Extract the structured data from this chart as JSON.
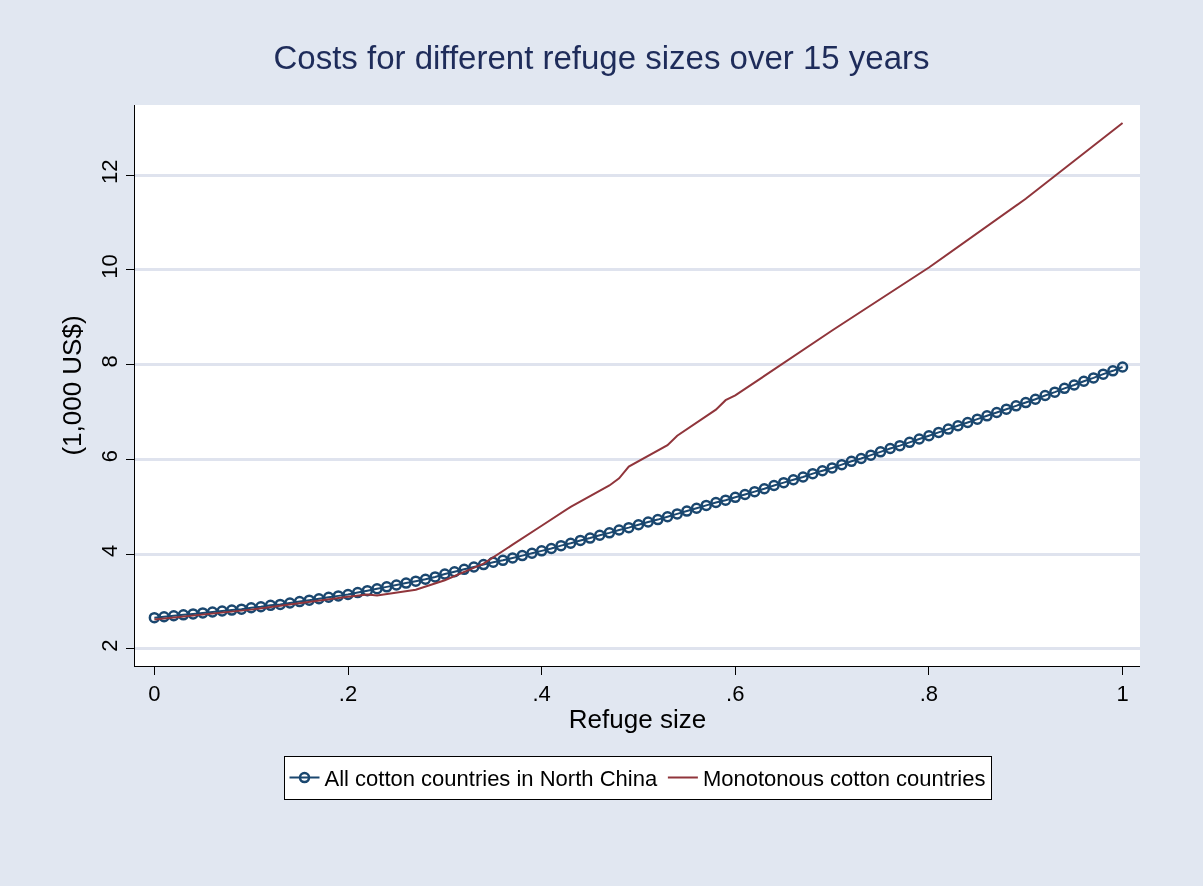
{
  "chart_data": {
    "type": "line",
    "title": "Costs for different refuge sizes over 15 years",
    "xlabel": "Refuge size",
    "ylabel": "(1,000 US$)",
    "xlim": [
      -0.02,
      1.018
    ],
    "ylim": [
      1.64,
      13.48
    ],
    "xticks": [
      0,
      {
        "value": 0.2,
        "label": ".2"
      },
      {
        "value": 0.4,
        "label": ".4"
      },
      {
        "value": 0.6,
        "label": ".6"
      },
      {
        "value": 0.8,
        "label": ".8"
      },
      1
    ],
    "yticks": [
      2,
      4,
      6,
      8,
      10,
      12
    ],
    "grid": "y",
    "legend": "bottom",
    "series": [
      {
        "name": "All cotton countries in North China",
        "color": "#1a476f",
        "marker": "circle",
        "x": [
          0,
          0.01,
          0.02,
          0.03,
          0.04,
          0.05,
          0.06,
          0.07,
          0.08,
          0.09,
          0.1,
          0.11,
          0.12,
          0.13,
          0.14,
          0.15,
          0.16,
          0.17,
          0.18,
          0.19,
          0.2,
          0.21,
          0.22,
          0.23,
          0.24,
          0.25,
          0.26,
          0.27,
          0.28,
          0.29,
          0.3,
          0.31,
          0.32,
          0.33,
          0.34,
          0.35,
          0.36,
          0.37,
          0.38,
          0.39,
          0.4,
          0.41,
          0.42,
          0.43,
          0.44,
          0.45,
          0.46,
          0.47,
          0.48,
          0.49,
          0.5,
          0.51,
          0.52,
          0.53,
          0.54,
          0.55,
          0.56,
          0.57,
          0.58,
          0.59,
          0.6,
          0.61,
          0.62,
          0.63,
          0.64,
          0.65,
          0.66,
          0.67,
          0.68,
          0.69,
          0.7,
          0.71,
          0.72,
          0.73,
          0.74,
          0.75,
          0.76,
          0.77,
          0.78,
          0.79,
          0.8,
          0.81,
          0.82,
          0.83,
          0.84,
          0.85,
          0.86,
          0.87,
          0.88,
          0.89,
          0.9,
          0.91,
          0.92,
          0.93,
          0.94,
          0.95,
          0.96,
          0.97,
          0.98,
          0.99,
          1
        ],
        "values": [
          2.66,
          2.68,
          2.7,
          2.72,
          2.74,
          2.76,
          2.78,
          2.8,
          2.82,
          2.84,
          2.87,
          2.89,
          2.92,
          2.94,
          2.97,
          3.0,
          3.03,
          3.06,
          3.09,
          3.12,
          3.15,
          3.19,
          3.23,
          3.27,
          3.31,
          3.35,
          3.39,
          3.43,
          3.47,
          3.52,
          3.58,
          3.63,
          3.68,
          3.73,
          3.78,
          3.83,
          3.87,
          3.92,
          3.97,
          4.02,
          4.07,
          4.12,
          4.18,
          4.23,
          4.29,
          4.34,
          4.4,
          4.45,
          4.51,
          4.56,
          4.62,
          4.68,
          4.73,
          4.79,
          4.85,
          4.91,
          4.97,
          5.03,
          5.09,
          5.14,
          5.2,
          5.26,
          5.32,
          5.38,
          5.45,
          5.51,
          5.57,
          5.63,
          5.7,
          5.76,
          5.82,
          5.89,
          5.96,
          6.02,
          6.09,
          6.16,
          6.23,
          6.29,
          6.36,
          6.43,
          6.5,
          6.57,
          6.64,
          6.71,
          6.78,
          6.85,
          6.92,
          6.99,
          7.06,
          7.13,
          7.2,
          7.27,
          7.35,
          7.42,
          7.5,
          7.57,
          7.65,
          7.72,
          7.8,
          7.87,
          7.95
        ]
      },
      {
        "name": "Monotonous cotton countries",
        "color": "#90353b",
        "marker": "none",
        "x": [
          0,
          0.1,
          0.2,
          0.22,
          0.23,
          0.27,
          0.3,
          0.34,
          0.37,
          0.4,
          0.43,
          0.47,
          0.48,
          0.49,
          0.53,
          0.54,
          0.58,
          0.59,
          0.6,
          0.7,
          0.8,
          0.9,
          1
        ],
        "values": [
          2.62,
          2.83,
          3.1,
          3.15,
          3.13,
          3.25,
          3.45,
          3.8,
          4.2,
          4.6,
          5.0,
          5.45,
          5.6,
          5.85,
          6.3,
          6.5,
          7.05,
          7.25,
          7.35,
          8.72,
          10.05,
          11.5,
          13.1
        ]
      }
    ]
  }
}
